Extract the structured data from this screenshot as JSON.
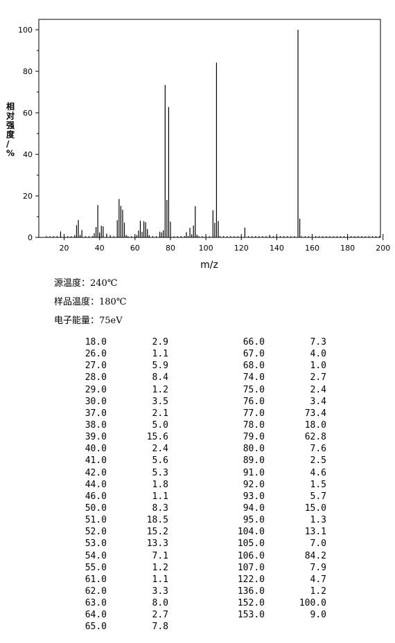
{
  "chart_data": {
    "type": "bar",
    "xlabel": "m/z",
    "ylabel": "相对强度/%",
    "xlim": [
      10,
      200
    ],
    "ylim": [
      0,
      105
    ],
    "x_ticks": [
      20,
      40,
      60,
      80,
      100,
      120,
      140,
      160,
      180,
      200
    ],
    "y_ticks": [
      0,
      20,
      40,
      60,
      80,
      100
    ],
    "x": [
      18,
      26,
      27,
      28,
      29,
      30,
      37,
      38,
      39,
      40,
      41,
      42,
      44,
      46,
      50,
      51,
      52,
      53,
      54,
      55,
      61,
      62,
      63,
      64,
      65,
      66,
      67,
      68,
      74,
      75,
      76,
      77,
      78,
      79,
      80,
      89,
      91,
      92,
      93,
      94,
      95,
      104,
      105,
      106,
      107,
      122,
      136,
      152,
      153
    ],
    "values": [
      2.9,
      1.1,
      5.9,
      8.4,
      1.2,
      3.5,
      2.1,
      5.0,
      15.6,
      2.4,
      5.6,
      5.3,
      1.8,
      1.1,
      8.3,
      18.5,
      15.2,
      13.3,
      7.1,
      1.2,
      1.1,
      3.3,
      8.0,
      2.7,
      7.8,
      7.3,
      4.0,
      1.0,
      2.7,
      2.4,
      3.4,
      73.4,
      18.0,
      62.8,
      7.6,
      2.5,
      4.6,
      1.5,
      5.7,
      15.0,
      1.3,
      13.1,
      7.0,
      84.2,
      7.9,
      4.7,
      1.2,
      100.0,
      9.0
    ],
    "grid": false,
    "legend": "none"
  },
  "meta": {
    "source_temp": "源温度：240℃",
    "sample_temp": "样品温度：180℃",
    "electron_energy": "电子能量：75eV"
  },
  "table_left": [
    [
      "18.0",
      "2.9"
    ],
    [
      "26.0",
      "1.1"
    ],
    [
      "27.0",
      "5.9"
    ],
    [
      "28.0",
      "8.4"
    ],
    [
      "29.0",
      "1.2"
    ],
    [
      "30.0",
      "3.5"
    ],
    [
      "37.0",
      "2.1"
    ],
    [
      "38.0",
      "5.0"
    ],
    [
      "39.0",
      "15.6"
    ],
    [
      "40.0",
      "2.4"
    ],
    [
      "41.0",
      "5.6"
    ],
    [
      "42.0",
      "5.3"
    ],
    [
      "44.0",
      "1.8"
    ],
    [
      "46.0",
      "1.1"
    ],
    [
      "50.0",
      "8.3"
    ],
    [
      "51.0",
      "18.5"
    ],
    [
      "52.0",
      "15.2"
    ],
    [
      "53.0",
      "13.3"
    ],
    [
      "54.0",
      "7.1"
    ],
    [
      "55.0",
      "1.2"
    ],
    [
      "61.0",
      "1.1"
    ],
    [
      "62.0",
      "3.3"
    ],
    [
      "63.0",
      "8.0"
    ],
    [
      "64.0",
      "2.7"
    ],
    [
      "65.0",
      "7.8"
    ]
  ],
  "table_right": [
    [
      "66.0",
      "7.3"
    ],
    [
      "67.0",
      "4.0"
    ],
    [
      "68.0",
      "1.0"
    ],
    [
      "74.0",
      "2.7"
    ],
    [
      "75.0",
      "2.4"
    ],
    [
      "76.0",
      "3.4"
    ],
    [
      "77.0",
      "73.4"
    ],
    [
      "78.0",
      "18.0"
    ],
    [
      "79.0",
      "62.8"
    ],
    [
      "80.0",
      "7.6"
    ],
    [
      "89.0",
      "2.5"
    ],
    [
      "91.0",
      "4.6"
    ],
    [
      "92.0",
      "1.5"
    ],
    [
      "93.0",
      "5.7"
    ],
    [
      "94.0",
      "15.0"
    ],
    [
      "95.0",
      "1.3"
    ],
    [
      "104.0",
      "13.1"
    ],
    [
      "105.0",
      "7.0"
    ],
    [
      "106.0",
      "84.2"
    ],
    [
      "107.0",
      "7.9"
    ],
    [
      "122.0",
      "4.7"
    ],
    [
      "136.0",
      "1.2"
    ],
    [
      "152.0",
      "100.0"
    ],
    [
      "153.0",
      "9.0"
    ]
  ]
}
